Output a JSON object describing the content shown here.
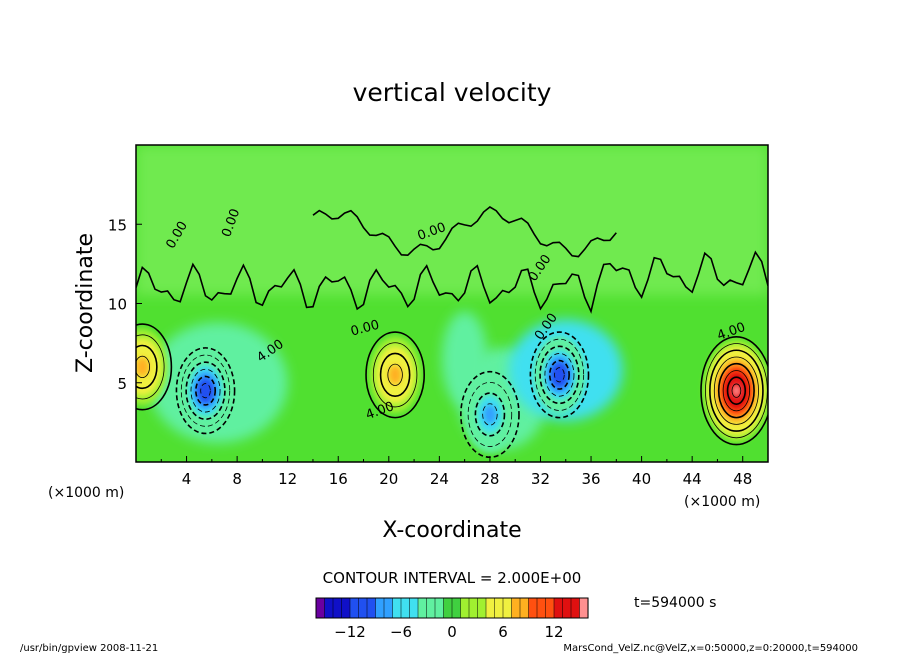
{
  "chart_data": {
    "type": "heatmap",
    "subtype": "contour-filled",
    "title": "vertical velocity",
    "xlabel": "X-coordinate",
    "ylabel": "Z-coordinate",
    "x_unit_label": "(×1000 m)",
    "y_unit_label": "(×1000 m)",
    "xlim": [
      0,
      50
    ],
    "ylim": [
      0,
      20
    ],
    "x_ticks": [
      "4",
      "8",
      "12",
      "16",
      "20",
      "24",
      "28",
      "32",
      "36",
      "40",
      "44",
      "48"
    ],
    "y_ticks": [
      "5",
      "10",
      "15"
    ],
    "contour_interval_text": "CONTOUR INTERVAL = 2.000E+00",
    "time_label": "t=594000  s",
    "colorbar": {
      "vmin": -16,
      "vmax": 16,
      "ticks": [
        "−12",
        "−6",
        "0",
        "6",
        "12"
      ],
      "tick_values": [
        -12,
        -6,
        0,
        6,
        12
      ],
      "colors": [
        "#6a00a0",
        "#1010c8",
        "#2050f0",
        "#30a0ff",
        "#40e0f0",
        "#60f0a0",
        "#40d040",
        "#a0f030",
        "#f0f040",
        "#ffb020",
        "#ff5010",
        "#e01010",
        "#ff9090"
      ]
    },
    "contour_labels": [
      {
        "text": "0.00",
        "x": 3.5,
        "z": 14.2,
        "angle": -60
      },
      {
        "text": "0.00",
        "x": 7.8,
        "z": 15.0,
        "angle": -70
      },
      {
        "text": "0.00",
        "x": 23.5,
        "z": 14.3,
        "angle": -20
      },
      {
        "text": "0.00",
        "x": 32.2,
        "z": 12.1,
        "angle": -55
      },
      {
        "text": "0.00",
        "x": 18.2,
        "z": 8.2,
        "angle": -15
      },
      {
        "text": "0.00",
        "x": 32.7,
        "z": 8.4,
        "angle": -55
      },
      {
        "text": "4.00",
        "x": 10.8,
        "z": 6.8,
        "angle": -35
      },
      {
        "text": "4.00",
        "x": 19.4,
        "z": 3.0,
        "angle": -20
      },
      {
        "text": "4.00",
        "x": 47.2,
        "z": 8.0,
        "angle": -20
      }
    ],
    "features": [
      {
        "kind": "min",
        "x": 5.5,
        "z": 4.5,
        "value": -12
      },
      {
        "kind": "min",
        "x": 33.5,
        "z": 5.5,
        "value": -12
      },
      {
        "kind": "min",
        "x": 28.0,
        "z": 3.0,
        "value": -8
      },
      {
        "kind": "max",
        "x": 20.5,
        "z": 5.5,
        "value": 8
      },
      {
        "kind": "max",
        "x": 47.5,
        "z": 4.5,
        "value": 16
      },
      {
        "kind": "max",
        "x": 0.5,
        "z": 6.0,
        "value": 8
      }
    ]
  },
  "footer": {
    "left": "/usr/bin/gpview   2008-11-21",
    "right": "MarsCond_VelZ.nc@VelZ,x=0:50000,z=0:20000,t=594000"
  }
}
